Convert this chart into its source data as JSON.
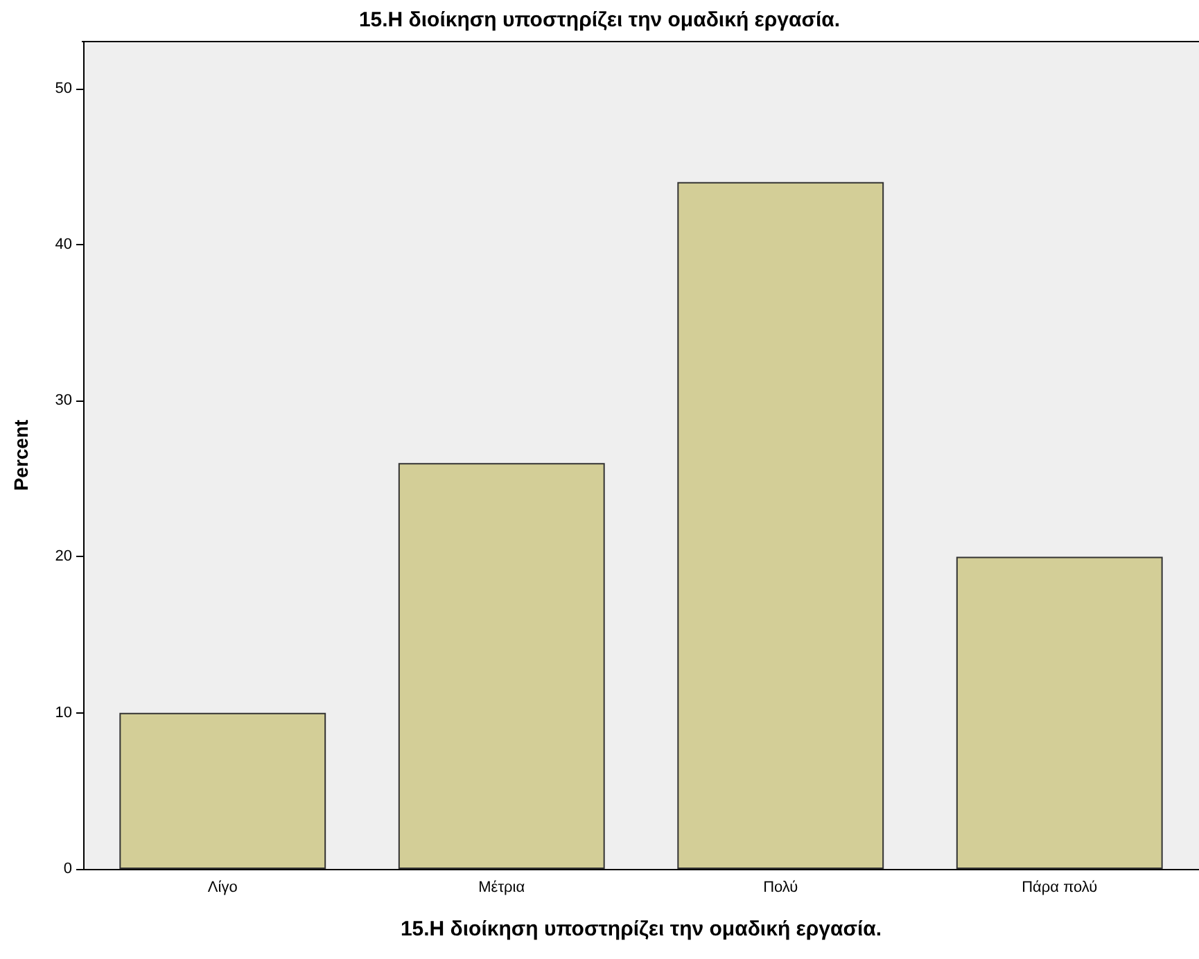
{
  "chart_data": {
    "type": "bar",
    "title": "15.Η διοίκηση υποστηρίζει την ομαδική εργασία.",
    "xlabel": "15.Η διοίκηση υποστηρίζει την ομαδική εργασία.",
    "ylabel": "Percent",
    "categories": [
      "Λίγο",
      "Μέτρια",
      "Πολύ",
      "Πάρα πολύ"
    ],
    "values": [
      10,
      26,
      44,
      20
    ],
    "color": "#d3ce97",
    "ylim": [
      0,
      53
    ],
    "yticks": [
      0,
      10,
      20,
      30,
      40,
      50
    ],
    "grid": false
  }
}
